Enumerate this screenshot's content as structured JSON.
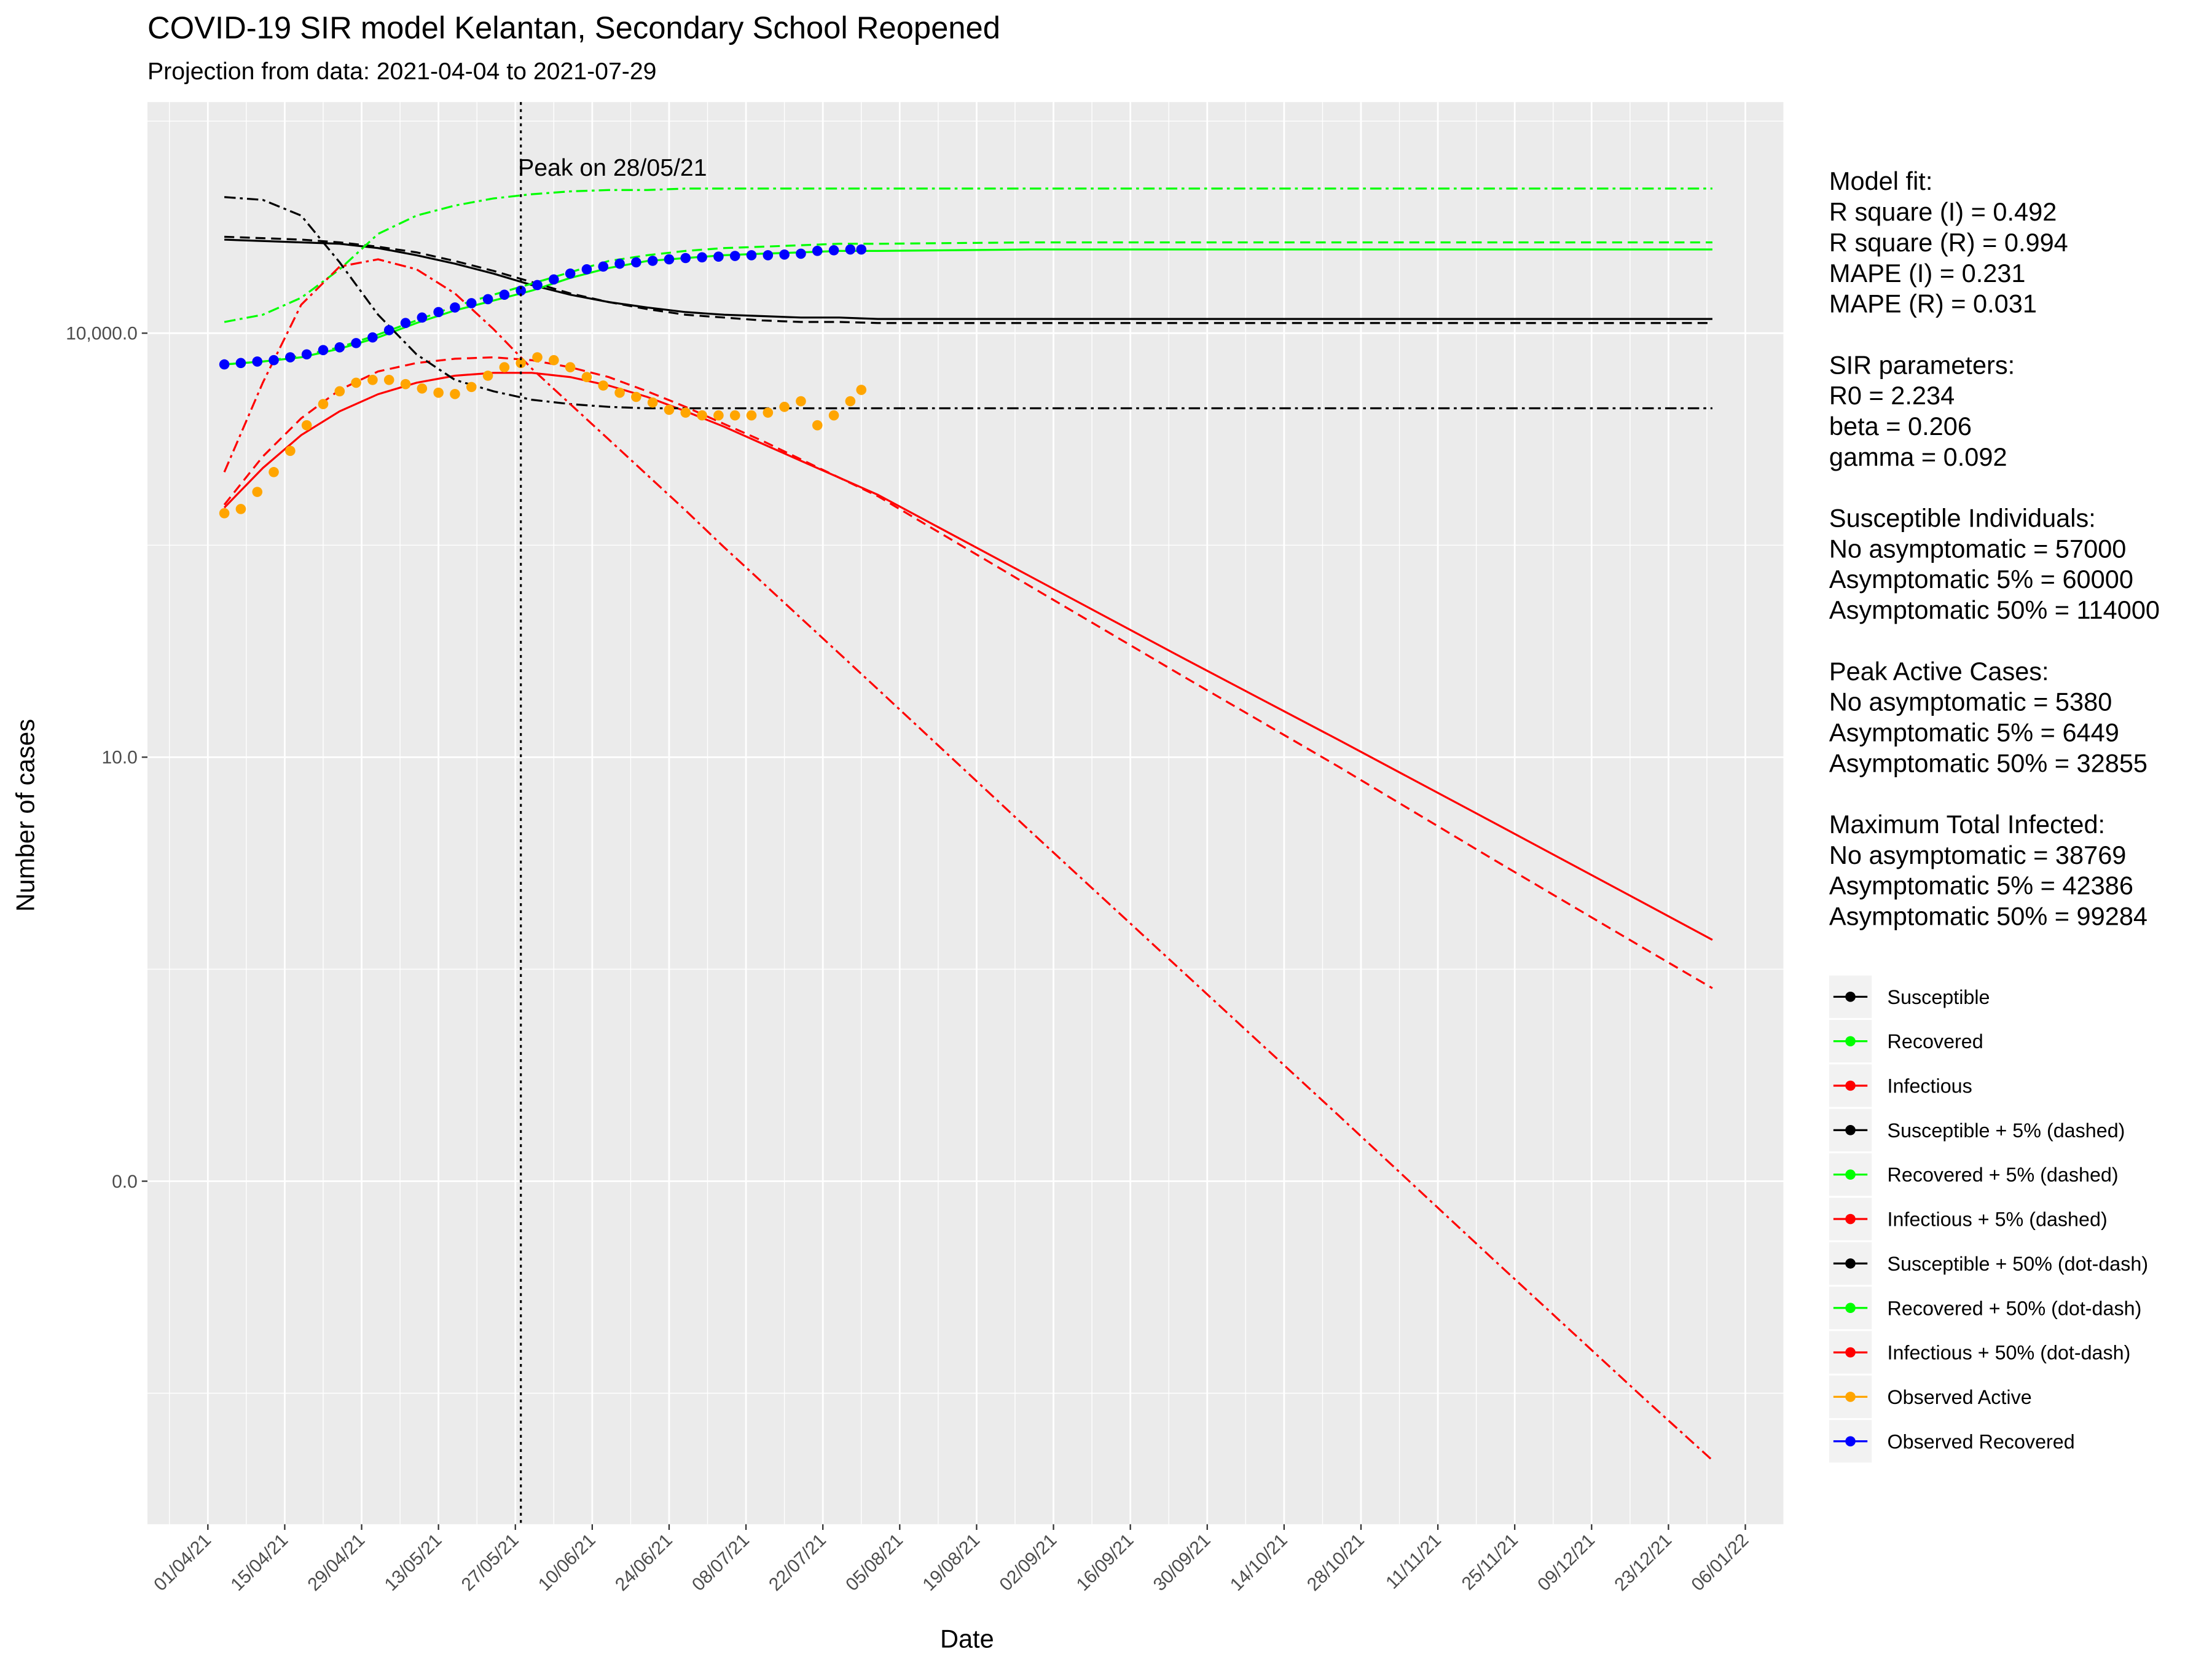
{
  "chart_data": {
    "type": "line",
    "title": "COVID-19 SIR model Kelantan, Secondary School Reopened",
    "subtitle": "Projection from data: 2021-04-04 to 2021-07-29",
    "x_label": "Date",
    "y_label": "Number of cases",
    "ylog": true,
    "grid": true,
    "legend_position": "right",
    "xlim": [
      "2021-03-21",
      "2022-01-13"
    ],
    "xticks": [
      {
        "value": "2021-04-01",
        "label": "01/04/21"
      },
      {
        "value": "2021-04-15",
        "label": "15/04/21"
      },
      {
        "value": "2021-04-29",
        "label": "29/04/21"
      },
      {
        "value": "2021-05-13",
        "label": "13/05/21"
      },
      {
        "value": "2021-05-27",
        "label": "27/05/21"
      },
      {
        "value": "2021-06-10",
        "label": "10/06/21"
      },
      {
        "value": "2021-06-24",
        "label": "24/06/21"
      },
      {
        "value": "2021-07-08",
        "label": "08/07/21"
      },
      {
        "value": "2021-07-22",
        "label": "22/07/21"
      },
      {
        "value": "2021-08-05",
        "label": "05/08/21"
      },
      {
        "value": "2021-08-19",
        "label": "19/08/21"
      },
      {
        "value": "2021-09-02",
        "label": "02/09/21"
      },
      {
        "value": "2021-09-16",
        "label": "16/09/21"
      },
      {
        "value": "2021-09-30",
        "label": "30/09/21"
      },
      {
        "value": "2021-10-14",
        "label": "14/10/21"
      },
      {
        "value": "2021-10-28",
        "label": "28/10/21"
      },
      {
        "value": "2021-11-11",
        "label": "11/11/21"
      },
      {
        "value": "2021-11-25",
        "label": "25/11/21"
      },
      {
        "value": "2021-12-09",
        "label": "09/12/21"
      },
      {
        "value": "2021-12-23",
        "label": "23/12/21"
      },
      {
        "value": "2022-01-06",
        "label": "06/01/22"
      }
    ],
    "ylim": [
      3.74e-05,
      431500
    ],
    "yticks": [
      {
        "value": 0.01,
        "label": "0.0"
      },
      {
        "value": 10,
        "label": "10.0"
      },
      {
        "value": 10000,
        "label": "10,000.0"
      }
    ],
    "vline": {
      "x": "2021-05-28",
      "label": "Peak on 28/05/21"
    },
    "notes": [
      [
        "Model fit:",
        "R square (I) = 0.492",
        "R square (R) = 0.994",
        "MAPE (I) = 0.231",
        "MAPE (R) = 0.031"
      ],
      [
        "SIR parameters:",
        "R0 = 2.234",
        "beta = 0.206",
        "gamma = 0.092"
      ],
      [
        "Susceptible Individuals:",
        "No asymptomatic = 57000",
        "Asymptomatic 5% = 60000",
        "Asymptomatic 50% = 114000"
      ],
      [
        "Peak Active Cases:",
        "No asymptomatic = 5380",
        "Asymptomatic 5% = 6449",
        "Asymptomatic 50% = 32855"
      ],
      [
        "Maximum Total Infected:",
        "No asymptomatic = 38769",
        "Asymptomatic 5% = 42386",
        "Asymptomatic 50% = 99284"
      ]
    ],
    "x": [
      "2021-04-04",
      "2021-04-11",
      "2021-04-18",
      "2021-04-25",
      "2021-05-02",
      "2021-05-09",
      "2021-05-16",
      "2021-05-23",
      "2021-05-30",
      "2021-06-06",
      "2021-06-13",
      "2021-06-20",
      "2021-06-27",
      "2021-07-04",
      "2021-07-11",
      "2021-07-18",
      "2021-07-25",
      "2021-08-01",
      "2021-08-29",
      "2021-09-26",
      "2021-10-24",
      "2021-11-21",
      "2021-12-19",
      "2021-12-31"
    ],
    "series": [
      {
        "name": "Susceptible",
        "color": "#000000",
        "style": "solid",
        "values": [
          45900,
          44900,
          43900,
          42900,
          40000,
          35600,
          31000,
          26400,
          21900,
          18700,
          16600,
          15200,
          14100,
          13500,
          13200,
          12900,
          12900,
          12600,
          12600,
          12600,
          12600,
          12600,
          12600,
          12600
        ]
      },
      {
        "name": "Recovered",
        "color": "#00ff00",
        "style": "solid",
        "values": [
          6010,
          6300,
          6750,
          7760,
          9330,
          11800,
          14500,
          17000,
          20000,
          24600,
          28900,
          32400,
          34000,
          35600,
          36500,
          37300,
          38200,
          38200,
          39100,
          39100,
          39100,
          39100,
          39100,
          39100
        ]
      },
      {
        "name": "Infectious",
        "color": "#ff0000",
        "style": "solid",
        "values": [
          583,
          1110,
          1900,
          2800,
          3700,
          4460,
          5000,
          5240,
          5240,
          4890,
          4260,
          3540,
          2800,
          2180,
          1650,
          1250,
          949,
          719,
          188,
          49.3,
          13.2,
          3.47,
          0.908,
          0.51
        ]
      },
      {
        "name": "Susceptible + 5% (dashed)",
        "color": "#000000",
        "style": "dashed",
        "values": [
          48100,
          47000,
          45900,
          43900,
          40900,
          37300,
          32400,
          27600,
          23000,
          19100,
          16600,
          14800,
          13500,
          12900,
          12300,
          12000,
          12000,
          11800,
          11800,
          11800,
          11800,
          11800,
          11800,
          11800
        ]
      },
      {
        "name": "Recovered + 5% (dashed)",
        "color": "#00ff00",
        "style": "dashed",
        "values": [
          6010,
          6300,
          6920,
          7940,
          9770,
          12300,
          15500,
          18700,
          22400,
          27000,
          32400,
          35600,
          38200,
          40000,
          40900,
          41900,
          42900,
          42900,
          43900,
          43900,
          43900,
          43900,
          43900,
          43900
        ]
      },
      {
        "name": "Infectious + 5% (dashed)",
        "color": "#ff0000",
        "style": "dashed",
        "values": [
          611,
          1340,
          2500,
          3970,
          5360,
          6150,
          6590,
          6750,
          6440,
          5740,
          4890,
          3880,
          3010,
          2280,
          1730,
          1280,
          949,
          703,
          160,
          36.6,
          8.53,
          1.9,
          0.434,
          0.232
        ]
      },
      {
        "name": "Susceptible + 50% (dot-dash)",
        "color": "#000000",
        "style": "dotdash",
        "values": [
          91800,
          87700,
          67900,
          31700,
          13500,
          7080,
          4670,
          3880,
          3380,
          3150,
          3010,
          2940,
          2940,
          2940,
          2940,
          2940,
          2940,
          2940,
          2940,
          2940,
          2940,
          2940,
          2940,
          2940
        ]
      },
      {
        "name": "Recovered + 50% (dot-dash)",
        "color": "#00ff00",
        "style": "dotdash",
        "values": [
          12000,
          13500,
          17800,
          28300,
          50400,
          67900,
          80000,
          89800,
          96200,
          100700,
          103000,
          103000,
          105500,
          105500,
          105500,
          105500,
          105500,
          105500,
          105500,
          105500,
          105500,
          105500,
          105500,
          105500
        ]
      },
      {
        "name": "Infectious + 50% (dot-dash)",
        "color": "#ff0000",
        "style": "dotdash",
        "values": [
          1040,
          4460,
          15900,
          29600,
          33300,
          28300,
          19100,
          10700,
          5610,
          3150,
          1770,
          993,
          557,
          306,
          172,
          96.4,
          54.1,
          30.3,
          2.94,
          0.292,
          0.029,
          0.00282,
          0.00028,
          0.000106
        ]
      },
      {
        "name": "Observed Active",
        "color": "#ffa500",
        "style": "points",
        "x": [
          "2021-04-04",
          "2021-04-07",
          "2021-04-10",
          "2021-04-13",
          "2021-04-16",
          "2021-04-19",
          "2021-04-22",
          "2021-04-25",
          "2021-04-28",
          "2021-05-01",
          "2021-05-04",
          "2021-05-07",
          "2021-05-10",
          "2021-05-13",
          "2021-05-16",
          "2021-05-19",
          "2021-05-22",
          "2021-05-25",
          "2021-05-28",
          "2021-05-31",
          "2021-06-03",
          "2021-06-06",
          "2021-06-09",
          "2021-06-12",
          "2021-06-15",
          "2021-06-18",
          "2021-06-21",
          "2021-06-24",
          "2021-06-27",
          "2021-06-30",
          "2021-07-03",
          "2021-07-06",
          "2021-07-09",
          "2021-07-12",
          "2021-07-15",
          "2021-07-18",
          "2021-07-21",
          "2021-07-24",
          "2021-07-27",
          "2021-07-29"
        ],
        "values": [
          532,
          570,
          753,
          1040,
          1470,
          2230,
          3150,
          3880,
          4460,
          4670,
          4670,
          4360,
          4060,
          3790,
          3710,
          4160,
          5000,
          5740,
          6150,
          6750,
          6440,
          5740,
          4890,
          4260,
          3790,
          3540,
          3230,
          2870,
          2740,
          2620,
          2620,
          2620,
          2620,
          2740,
          3010,
          3300,
          2230,
          2620,
          3300,
          3970
        ]
      },
      {
        "name": "Observed Recovered",
        "color": "#0000ff",
        "style": "points",
        "x": [
          "2021-04-04",
          "2021-04-07",
          "2021-04-10",
          "2021-04-13",
          "2021-04-16",
          "2021-04-19",
          "2021-04-22",
          "2021-04-25",
          "2021-04-28",
          "2021-05-01",
          "2021-05-04",
          "2021-05-07",
          "2021-05-10",
          "2021-05-13",
          "2021-05-16",
          "2021-05-19",
          "2021-05-22",
          "2021-05-25",
          "2021-05-28",
          "2021-05-31",
          "2021-06-03",
          "2021-06-06",
          "2021-06-09",
          "2021-06-12",
          "2021-06-15",
          "2021-06-18",
          "2021-06-21",
          "2021-06-24",
          "2021-06-27",
          "2021-06-30",
          "2021-07-03",
          "2021-07-06",
          "2021-07-09",
          "2021-07-12",
          "2021-07-15",
          "2021-07-18",
          "2021-07-21",
          "2021-07-24",
          "2021-07-27",
          "2021-07-29"
        ],
        "values": [
          6010,
          6150,
          6300,
          6440,
          6750,
          7080,
          7590,
          7940,
          8510,
          9330,
          10500,
          11800,
          12900,
          14100,
          15200,
          16300,
          17400,
          18700,
          20000,
          21900,
          24000,
          26400,
          28300,
          29600,
          31000,
          31700,
          32500,
          33300,
          34000,
          34400,
          34800,
          35200,
          35600,
          35600,
          36000,
          36500,
          38200,
          38600,
          39100,
          39100
        ]
      }
    ]
  }
}
